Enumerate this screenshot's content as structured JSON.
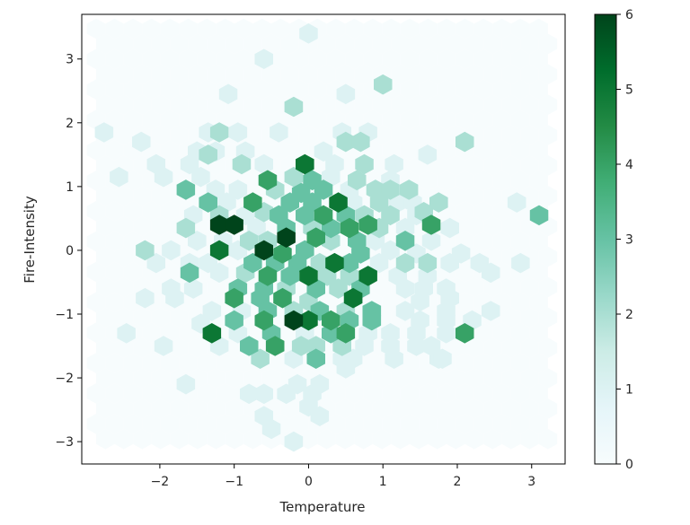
{
  "chart_data": {
    "type": "hexbin",
    "title": "",
    "xlabel": "Temperature",
    "ylabel": "Fire-Intensity",
    "xlim": [
      -3.05,
      3.45
    ],
    "ylim": [
      -3.35,
      3.7
    ],
    "xticks": [
      -2,
      -1,
      0,
      1,
      2,
      3
    ],
    "yticks": [
      -3,
      -2,
      -1,
      0,
      1,
      2,
      3
    ],
    "xtick_labels": [
      "−2",
      "−1",
      "0",
      "1",
      "2",
      "3"
    ],
    "ytick_labels": [
      "−3",
      "−2",
      "−1",
      "0",
      "1",
      "2",
      "3"
    ],
    "gridsize_x": 25,
    "colormap": "BuGn",
    "color_range": [
      0,
      6
    ],
    "colorbar": {
      "ticks": [
        0,
        1,
        2,
        3,
        4,
        5,
        6
      ],
      "tick_labels": [
        "0",
        "1",
        "2",
        "3",
        "4",
        "5",
        "6"
      ]
    },
    "grid": false,
    "bins": [
      {
        "x": 0.0,
        "y": 3.4,
        "count": 1
      },
      {
        "x": -0.6,
        "y": 3.0,
        "count": 1
      },
      {
        "x": -1.08,
        "y": 2.45,
        "count": 1
      },
      {
        "x": 0.5,
        "y": 2.45,
        "count": 1
      },
      {
        "x": 1.0,
        "y": 2.6,
        "count": 2
      },
      {
        "x": -0.2,
        "y": 2.25,
        "count": 2
      },
      {
        "x": -2.75,
        "y": 1.85,
        "count": 1
      },
      {
        "x": -2.25,
        "y": 1.7,
        "count": 1
      },
      {
        "x": -1.35,
        "y": 1.85,
        "count": 1
      },
      {
        "x": -1.2,
        "y": 1.85,
        "count": 2
      },
      {
        "x": -0.95,
        "y": 1.85,
        "count": 1
      },
      {
        "x": -0.4,
        "y": 1.85,
        "count": 1
      },
      {
        "x": 0.45,
        "y": 1.85,
        "count": 1
      },
      {
        "x": 0.8,
        "y": 1.85,
        "count": 1
      },
      {
        "x": -1.5,
        "y": 1.55,
        "count": 1
      },
      {
        "x": -1.25,
        "y": 1.55,
        "count": 1
      },
      {
        "x": -0.85,
        "y": 1.55,
        "count": 1
      },
      {
        "x": 0.5,
        "y": 1.7,
        "count": 2
      },
      {
        "x": 0.7,
        "y": 1.7,
        "count": 2
      },
      {
        "x": 0.2,
        "y": 1.55,
        "count": 1
      },
      {
        "x": 1.6,
        "y": 1.5,
        "count": 1
      },
      {
        "x": 2.1,
        "y": 1.7,
        "count": 2
      },
      {
        "x": -2.05,
        "y": 1.35,
        "count": 1
      },
      {
        "x": -1.6,
        "y": 1.35,
        "count": 1
      },
      {
        "x": -1.35,
        "y": 1.5,
        "count": 2
      },
      {
        "x": -0.9,
        "y": 1.35,
        "count": 2
      },
      {
        "x": -0.6,
        "y": 1.35,
        "count": 1
      },
      {
        "x": -0.05,
        "y": 1.35,
        "count": 5
      },
      {
        "x": 0.35,
        "y": 1.35,
        "count": 1
      },
      {
        "x": 0.75,
        "y": 1.35,
        "count": 2
      },
      {
        "x": 1.15,
        "y": 1.35,
        "count": 1
      },
      {
        "x": -2.55,
        "y": 1.15,
        "count": 1
      },
      {
        "x": -1.95,
        "y": 1.15,
        "count": 1
      },
      {
        "x": -1.45,
        "y": 1.15,
        "count": 1
      },
      {
        "x": -0.55,
        "y": 1.1,
        "count": 4
      },
      {
        "x": -0.2,
        "y": 1.15,
        "count": 2
      },
      {
        "x": 0.05,
        "y": 1.1,
        "count": 3
      },
      {
        "x": 0.3,
        "y": 1.15,
        "count": 1
      },
      {
        "x": 0.65,
        "y": 1.1,
        "count": 2
      },
      {
        "x": 1.1,
        "y": 1.1,
        "count": 1
      },
      {
        "x": -1.65,
        "y": 0.95,
        "count": 3
      },
      {
        "x": -1.25,
        "y": 0.95,
        "count": 1
      },
      {
        "x": -0.95,
        "y": 0.95,
        "count": 1
      },
      {
        "x": -0.45,
        "y": 0.95,
        "count": 2
      },
      {
        "x": -0.1,
        "y": 0.9,
        "count": 3
      },
      {
        "x": 0.2,
        "y": 0.95,
        "count": 3
      },
      {
        "x": 0.55,
        "y": 0.95,
        "count": 1
      },
      {
        "x": 0.9,
        "y": 0.95,
        "count": 2
      },
      {
        "x": 1.1,
        "y": 0.95,
        "count": 2
      },
      {
        "x": 1.35,
        "y": 0.95,
        "count": 2
      },
      {
        "x": -1.35,
        "y": 0.75,
        "count": 3
      },
      {
        "x": -1.1,
        "y": 0.75,
        "count": 1
      },
      {
        "x": -0.75,
        "y": 0.75,
        "count": 4
      },
      {
        "x": -0.6,
        "y": 0.6,
        "count": 2
      },
      {
        "x": -0.25,
        "y": 0.75,
        "count": 3
      },
      {
        "x": 0.05,
        "y": 0.75,
        "count": 3
      },
      {
        "x": 0.4,
        "y": 0.75,
        "count": 5
      },
      {
        "x": 0.6,
        "y": 0.75,
        "count": 1
      },
      {
        "x": 0.95,
        "y": 0.75,
        "count": 2
      },
      {
        "x": 1.2,
        "y": 0.75,
        "count": 1
      },
      {
        "x": 1.4,
        "y": 0.75,
        "count": 1
      },
      {
        "x": 1.75,
        "y": 0.75,
        "count": 2
      },
      {
        "x": 2.8,
        "y": 0.75,
        "count": 1
      },
      {
        "x": -1.55,
        "y": 0.55,
        "count": 1
      },
      {
        "x": -1.2,
        "y": 0.55,
        "count": 2
      },
      {
        "x": -0.85,
        "y": 0.55,
        "count": 1
      },
      {
        "x": -0.4,
        "y": 0.55,
        "count": 3
      },
      {
        "x": -0.05,
        "y": 0.55,
        "count": 3
      },
      {
        "x": 0.2,
        "y": 0.55,
        "count": 4
      },
      {
        "x": 0.5,
        "y": 0.55,
        "count": 3
      },
      {
        "x": 0.75,
        "y": 0.55,
        "count": 2
      },
      {
        "x": 1.1,
        "y": 0.55,
        "count": 2
      },
      {
        "x": 1.45,
        "y": 0.55,
        "count": 1
      },
      {
        "x": 1.55,
        "y": 0.6,
        "count": 2
      },
      {
        "x": 3.1,
        "y": 0.55,
        "count": 3
      },
      {
        "x": -1.65,
        "y": 0.35,
        "count": 2
      },
      {
        "x": -1.2,
        "y": 0.4,
        "count": 6
      },
      {
        "x": -1.0,
        "y": 0.4,
        "count": 6
      },
      {
        "x": -0.7,
        "y": 0.35,
        "count": 1
      },
      {
        "x": -0.3,
        "y": 0.35,
        "count": 3
      },
      {
        "x": 0.05,
        "y": 0.35,
        "count": 2
      },
      {
        "x": 0.3,
        "y": 0.35,
        "count": 3
      },
      {
        "x": 0.55,
        "y": 0.35,
        "count": 4
      },
      {
        "x": 0.8,
        "y": 0.4,
        "count": 4
      },
      {
        "x": 0.95,
        "y": 0.35,
        "count": 2
      },
      {
        "x": 1.3,
        "y": 0.35,
        "count": 1
      },
      {
        "x": 1.65,
        "y": 0.4,
        "count": 4
      },
      {
        "x": 1.9,
        "y": 0.35,
        "count": 1
      },
      {
        "x": -1.5,
        "y": 0.15,
        "count": 1
      },
      {
        "x": -1.15,
        "y": 0.15,
        "count": 1
      },
      {
        "x": -0.8,
        "y": 0.15,
        "count": 2
      },
      {
        "x": -0.55,
        "y": 0.15,
        "count": 2
      },
      {
        "x": -0.3,
        "y": 0.2,
        "count": 6
      },
      {
        "x": 0.1,
        "y": 0.2,
        "count": 4
      },
      {
        "x": 0.3,
        "y": 0.15,
        "count": 2
      },
      {
        "x": 0.65,
        "y": 0.15,
        "count": 3
      },
      {
        "x": 0.9,
        "y": 0.15,
        "count": 1
      },
      {
        "x": 1.3,
        "y": 0.15,
        "count": 3
      },
      {
        "x": 1.65,
        "y": 0.15,
        "count": 1
      },
      {
        "x": -2.2,
        "y": 0.0,
        "count": 2
      },
      {
        "x": -1.85,
        "y": 0.0,
        "count": 1
      },
      {
        "x": -1.2,
        "y": 0.0,
        "count": 5
      },
      {
        "x": -0.95,
        "y": 0.0,
        "count": 1
      },
      {
        "x": -0.6,
        "y": 0.0,
        "count": 6
      },
      {
        "x": -0.35,
        "y": -0.05,
        "count": 4
      },
      {
        "x": -0.05,
        "y": 0.0,
        "count": 3
      },
      {
        "x": 0.35,
        "y": -0.2,
        "count": 5
      },
      {
        "x": 0.7,
        "y": -0.05,
        "count": 3
      },
      {
        "x": 1.1,
        "y": 0.0,
        "count": 1
      },
      {
        "x": 1.45,
        "y": -0.05,
        "count": 1
      },
      {
        "x": 2.05,
        "y": -0.05,
        "count": 1
      },
      {
        "x": -2.05,
        "y": -0.2,
        "count": 1
      },
      {
        "x": -1.6,
        "y": -0.2,
        "count": 1
      },
      {
        "x": -1.35,
        "y": -0.2,
        "count": 1
      },
      {
        "x": -0.75,
        "y": -0.2,
        "count": 3
      },
      {
        "x": -0.45,
        "y": -0.2,
        "count": 3
      },
      {
        "x": -0.15,
        "y": -0.2,
        "count": 3
      },
      {
        "x": 0.15,
        "y": -0.2,
        "count": 2
      },
      {
        "x": 0.55,
        "y": -0.2,
        "count": 3
      },
      {
        "x": 0.95,
        "y": -0.2,
        "count": 1
      },
      {
        "x": 1.3,
        "y": -0.2,
        "count": 2
      },
      {
        "x": 1.6,
        "y": -0.2,
        "count": 2
      },
      {
        "x": 1.9,
        "y": -0.2,
        "count": 1
      },
      {
        "x": 2.3,
        "y": -0.2,
        "count": 1
      },
      {
        "x": 2.85,
        "y": -0.2,
        "count": 1
      },
      {
        "x": -1.6,
        "y": -0.35,
        "count": 3
      },
      {
        "x": -1.2,
        "y": -0.35,
        "count": 1
      },
      {
        "x": -0.85,
        "y": -0.35,
        "count": 2
      },
      {
        "x": -0.55,
        "y": -0.4,
        "count": 4
      },
      {
        "x": -0.25,
        "y": -0.4,
        "count": 3
      },
      {
        "x": 0.0,
        "y": -0.4,
        "count": 5
      },
      {
        "x": 0.25,
        "y": -0.4,
        "count": 2
      },
      {
        "x": 0.55,
        "y": -0.4,
        "count": 2
      },
      {
        "x": 0.8,
        "y": -0.4,
        "count": 5
      },
      {
        "x": 1.2,
        "y": -0.4,
        "count": 1
      },
      {
        "x": 1.6,
        "y": -0.4,
        "count": 1
      },
      {
        "x": 2.45,
        "y": -0.35,
        "count": 1
      },
      {
        "x": -1.85,
        "y": -0.6,
        "count": 1
      },
      {
        "x": -1.55,
        "y": -0.6,
        "count": 1
      },
      {
        "x": -0.95,
        "y": -0.6,
        "count": 3
      },
      {
        "x": -0.6,
        "y": -0.6,
        "count": 3
      },
      {
        "x": -0.3,
        "y": -0.6,
        "count": 2
      },
      {
        "x": 0.1,
        "y": -0.6,
        "count": 3
      },
      {
        "x": 0.4,
        "y": -0.6,
        "count": 2
      },
      {
        "x": 0.7,
        "y": -0.6,
        "count": 3
      },
      {
        "x": 1.3,
        "y": -0.6,
        "count": 1
      },
      {
        "x": 1.55,
        "y": -0.6,
        "count": 1
      },
      {
        "x": 1.85,
        "y": -0.6,
        "count": 1
      },
      {
        "x": -2.2,
        "y": -0.75,
        "count": 1
      },
      {
        "x": -1.8,
        "y": -0.75,
        "count": 1
      },
      {
        "x": -1.0,
        "y": -0.75,
        "count": 4
      },
      {
        "x": -0.65,
        "y": -0.75,
        "count": 3
      },
      {
        "x": -0.35,
        "y": -0.75,
        "count": 4
      },
      {
        "x": 0.0,
        "y": -0.8,
        "count": 2
      },
      {
        "x": 0.6,
        "y": -0.75,
        "count": 2
      },
      {
        "x": 0.6,
        "y": -0.75,
        "count": 5
      },
      {
        "x": 1.5,
        "y": -0.8,
        "count": 1
      },
      {
        "x": 1.9,
        "y": -0.75,
        "count": 1
      },
      {
        "x": -1.3,
        "y": -0.95,
        "count": 1
      },
      {
        "x": -0.9,
        "y": -0.95,
        "count": 1
      },
      {
        "x": -0.55,
        "y": -0.95,
        "count": 3
      },
      {
        "x": -0.2,
        "y": -0.95,
        "count": 2
      },
      {
        "x": 0.15,
        "y": -0.95,
        "count": 3
      },
      {
        "x": 0.5,
        "y": -0.95,
        "count": 2
      },
      {
        "x": 0.85,
        "y": -0.95,
        "count": 3
      },
      {
        "x": 1.3,
        "y": -0.95,
        "count": 1
      },
      {
        "x": 1.85,
        "y": -0.95,
        "count": 1
      },
      {
        "x": 2.45,
        "y": -0.95,
        "count": 1
      },
      {
        "x": -1.45,
        "y": -1.15,
        "count": 1
      },
      {
        "x": -1.0,
        "y": -1.1,
        "count": 3
      },
      {
        "x": -0.6,
        "y": -1.1,
        "count": 4
      },
      {
        "x": -0.2,
        "y": -1.1,
        "count": 6
      },
      {
        "x": 0.0,
        "y": -1.1,
        "count": 5
      },
      {
        "x": 0.3,
        "y": -1.1,
        "count": 4
      },
      {
        "x": 0.55,
        "y": -1.1,
        "count": 3
      },
      {
        "x": 0.85,
        "y": -1.1,
        "count": 3
      },
      {
        "x": 1.5,
        "y": -1.1,
        "count": 1
      },
      {
        "x": 1.85,
        "y": -1.1,
        "count": 1
      },
      {
        "x": 2.2,
        "y": -1.1,
        "count": 1
      },
      {
        "x": -2.45,
        "y": -1.3,
        "count": 1
      },
      {
        "x": -1.3,
        "y": -1.3,
        "count": 5
      },
      {
        "x": -0.95,
        "y": -1.3,
        "count": 1
      },
      {
        "x": -0.5,
        "y": -1.3,
        "count": 3
      },
      {
        "x": -0.05,
        "y": -1.3,
        "count": 1
      },
      {
        "x": 0.3,
        "y": -1.3,
        "count": 3
      },
      {
        "x": 0.5,
        "y": -1.3,
        "count": 4
      },
      {
        "x": 0.8,
        "y": -1.3,
        "count": 1
      },
      {
        "x": 1.1,
        "y": -1.3,
        "count": 1
      },
      {
        "x": 1.45,
        "y": -1.3,
        "count": 1
      },
      {
        "x": 1.85,
        "y": -1.3,
        "count": 1
      },
      {
        "x": 2.1,
        "y": -1.3,
        "count": 4
      },
      {
        "x": -1.95,
        "y": -1.5,
        "count": 1
      },
      {
        "x": -1.2,
        "y": -1.5,
        "count": 1
      },
      {
        "x": -0.8,
        "y": -1.5,
        "count": 3
      },
      {
        "x": -0.45,
        "y": -1.5,
        "count": 4
      },
      {
        "x": -0.1,
        "y": -1.5,
        "count": 2
      },
      {
        "x": 0.1,
        "y": -1.5,
        "count": 2
      },
      {
        "x": 0.45,
        "y": -1.5,
        "count": 2
      },
      {
        "x": 0.75,
        "y": -1.5,
        "count": 1
      },
      {
        "x": 1.1,
        "y": -1.5,
        "count": 1
      },
      {
        "x": 1.45,
        "y": -1.5,
        "count": 1
      },
      {
        "x": 1.65,
        "y": -1.5,
        "count": 1
      },
      {
        "x": -0.65,
        "y": -1.7,
        "count": 2
      },
      {
        "x": -0.2,
        "y": -1.7,
        "count": 1
      },
      {
        "x": 0.1,
        "y": -1.7,
        "count": 3
      },
      {
        "x": 0.45,
        "y": -1.7,
        "count": 1
      },
      {
        "x": 0.6,
        "y": -1.7,
        "count": 1
      },
      {
        "x": 1.15,
        "y": -1.7,
        "count": 1
      },
      {
        "x": 1.75,
        "y": -1.7,
        "count": 1
      },
      {
        "x": 0.5,
        "y": -1.85,
        "count": 1
      },
      {
        "x": 1.8,
        "y": -1.7,
        "count": 1
      },
      {
        "x": -1.65,
        "y": -2.1,
        "count": 1
      },
      {
        "x": -0.15,
        "y": -2.1,
        "count": 1
      },
      {
        "x": 0.15,
        "y": -2.1,
        "count": 1
      },
      {
        "x": -0.8,
        "y": -2.25,
        "count": 1
      },
      {
        "x": -0.6,
        "y": -2.25,
        "count": 1
      },
      {
        "x": -0.3,
        "y": -2.25,
        "count": 1
      },
      {
        "x": 0.05,
        "y": -2.25,
        "count": 1
      },
      {
        "x": 0.0,
        "y": -2.45,
        "count": 1
      },
      {
        "x": 0.15,
        "y": -2.6,
        "count": 1
      },
      {
        "x": -0.6,
        "y": -2.6,
        "count": 1
      },
      {
        "x": -0.5,
        "y": -2.8,
        "count": 1
      },
      {
        "x": -0.2,
        "y": -3.0,
        "count": 1
      }
    ]
  }
}
